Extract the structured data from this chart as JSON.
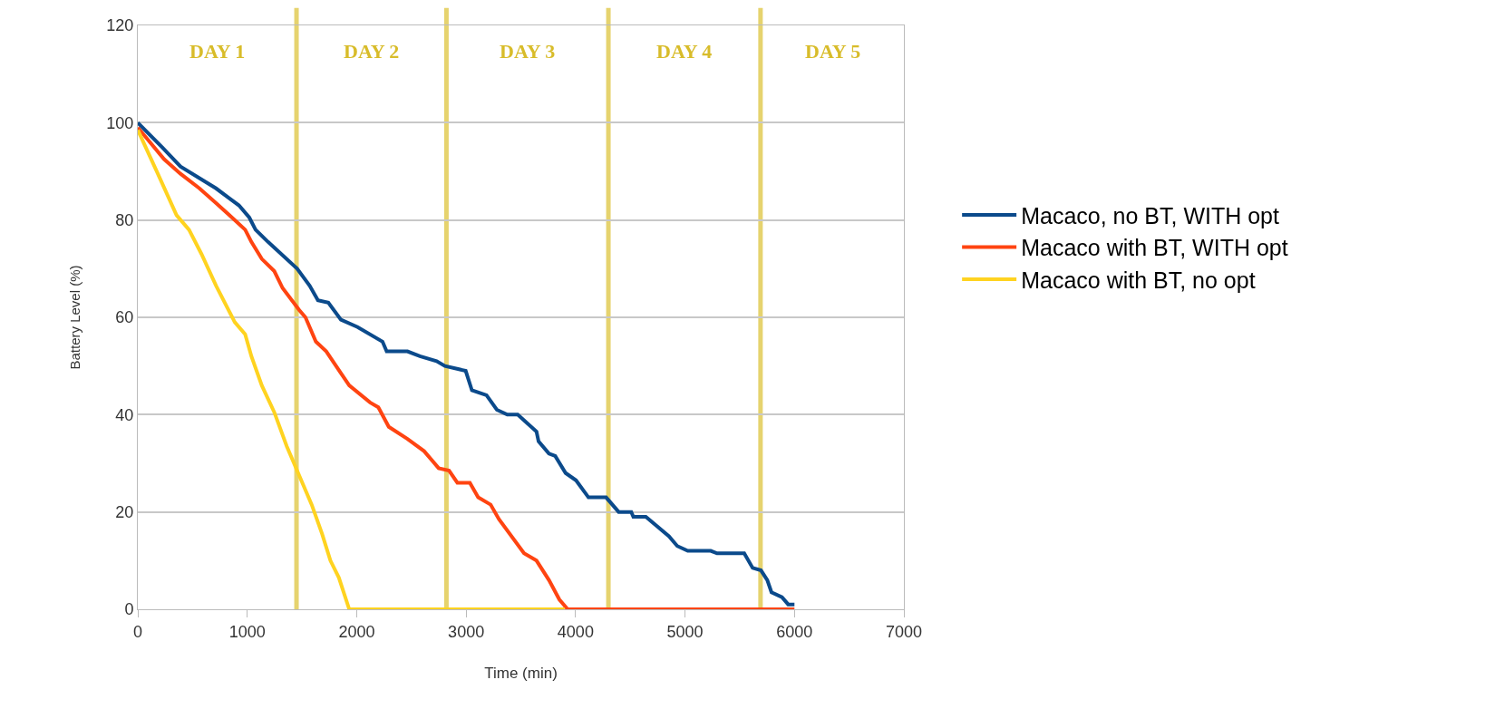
{
  "chart_data": {
    "type": "line",
    "xlabel": "Time (min)",
    "ylabel": "Battery Level (%)",
    "xlim": [
      0,
      7000
    ],
    "xticks": [
      0,
      1000,
      2000,
      3000,
      4000,
      5000,
      6000,
      7000
    ],
    "ylim": [
      0,
      120
    ],
    "yticks": [
      0,
      20,
      40,
      60,
      80,
      100,
      120
    ],
    "grid": "y",
    "legend": "right",
    "line_style": "solid",
    "marker": "none",
    "series": [
      {
        "name": "Macaco, no BT, WITH opt",
        "color": "#0b4a8b",
        "x": [
          0,
          220,
          390,
          715,
          924,
          1019,
          1076,
          1190,
          1456,
          1570,
          1646,
          1741,
          1856,
          2008,
          2236,
          2274,
          2464,
          2578,
          2730,
          2806,
          2996,
          3053,
          3186,
          3281,
          3376,
          3471,
          3643,
          3662,
          3757,
          3814,
          3909,
          4004,
          4118,
          4279,
          4394,
          4509,
          4528,
          4642,
          4853,
          4929,
          5025,
          5235,
          5293,
          5541,
          5618,
          5694,
          5752,
          5790,
          5886,
          5943,
          6000
        ],
        "values": [
          100,
          95,
          91,
          86.5,
          83,
          80.5,
          78,
          75.5,
          70,
          66.5,
          63.5,
          63,
          59.5,
          58,
          55,
          53,
          53,
          52,
          51,
          50,
          49,
          45,
          44,
          41,
          40,
          40,
          36.5,
          34.5,
          32,
          31.5,
          28,
          26.5,
          23,
          23,
          20,
          20,
          19,
          19,
          15,
          13,
          12,
          12,
          11.5,
          11.5,
          8.5,
          8,
          6,
          3.5,
          2.5,
          1,
          1
        ]
      },
      {
        "name": "Macaco with BT, WITH opt",
        "color": "#ff4411",
        "x": [
          0,
          240,
          390,
          563,
          715,
          886,
          981,
          1038,
          1133,
          1247,
          1323,
          1475,
          1532,
          1627,
          1722,
          1856,
          1932,
          2122,
          2198,
          2293,
          2464,
          2616,
          2749,
          2844,
          2920,
          3034,
          3110,
          3224,
          3300,
          3529,
          3643,
          3757,
          3852,
          3928,
          6000
        ],
        "values": [
          99,
          92.5,
          89.5,
          86.5,
          83.5,
          80,
          78,
          75.5,
          72,
          69.5,
          66,
          61.5,
          60,
          55,
          53,
          48.5,
          46,
          42.5,
          41.5,
          37.5,
          35,
          32.5,
          29,
          28.5,
          26,
          26,
          23,
          21.5,
          18.5,
          11.5,
          10,
          6,
          2,
          0,
          0
        ]
      },
      {
        "name": "Macaco with BT, no opt",
        "color": "#ffd320",
        "x": [
          0,
          183,
          354,
          468,
          582,
          715,
          886,
          981,
          1038,
          1133,
          1247,
          1361,
          1475,
          1589,
          1684,
          1760,
          1837,
          1932,
          3900
        ],
        "values": [
          98.5,
          89.5,
          81,
          78,
          73,
          66.5,
          59,
          56.5,
          52,
          46,
          40.5,
          33.5,
          27.5,
          21.5,
          15.5,
          10,
          6.5,
          0,
          0
        ]
      }
    ],
    "ref_lines": [
      {
        "axis": "x",
        "value": 1450,
        "color": "#e6d36e"
      },
      {
        "axis": "x",
        "value": 2820,
        "color": "#e6d36e"
      },
      {
        "axis": "x",
        "value": 4300,
        "color": "#e6d36e"
      },
      {
        "axis": "x",
        "value": 5690,
        "color": "#e6d36e"
      }
    ],
    "annotations": [
      "DAY 1",
      "DAY 2",
      "DAY 3",
      "DAY 4",
      "DAY 5"
    ]
  }
}
